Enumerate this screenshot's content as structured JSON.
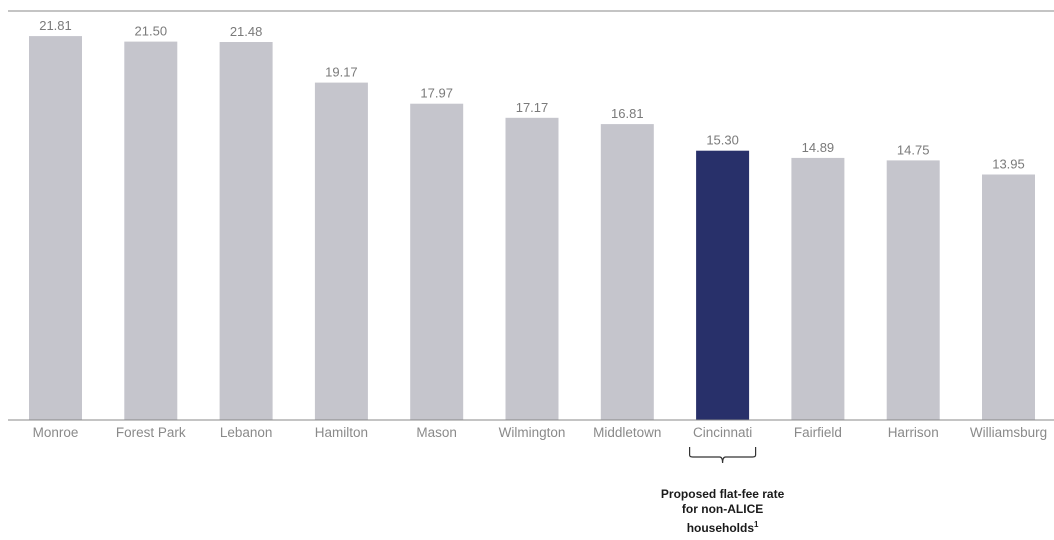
{
  "chart_data": {
    "type": "bar",
    "categories": [
      "Monroe",
      "Forest Park",
      "Lebanon",
      "Hamilton",
      "Mason",
      "Wilmington",
      "Middletown",
      "Cincinnati",
      "Fairfield",
      "Harrison",
      "Williamsburg"
    ],
    "values": [
      21.81,
      21.5,
      21.48,
      19.17,
      17.97,
      17.17,
      16.81,
      15.3,
      14.89,
      14.75,
      13.95
    ],
    "value_labels": [
      "21.81",
      "21.50",
      "21.48",
      "19.17",
      "17.97",
      "17.17",
      "16.81",
      "15.30",
      "14.89",
      "14.75",
      "13.95"
    ],
    "highlight_category": "Cincinnati",
    "ylim": [
      0,
      24
    ],
    "grid": false,
    "colors": {
      "bar": "#c5c5cc",
      "highlight": "#28306a",
      "axis": "#888888"
    },
    "annotation": {
      "target": "Cincinnati",
      "lines": [
        "Proposed flat-fee rate",
        "for non-ALICE",
        "households"
      ],
      "superscript": "1"
    }
  }
}
